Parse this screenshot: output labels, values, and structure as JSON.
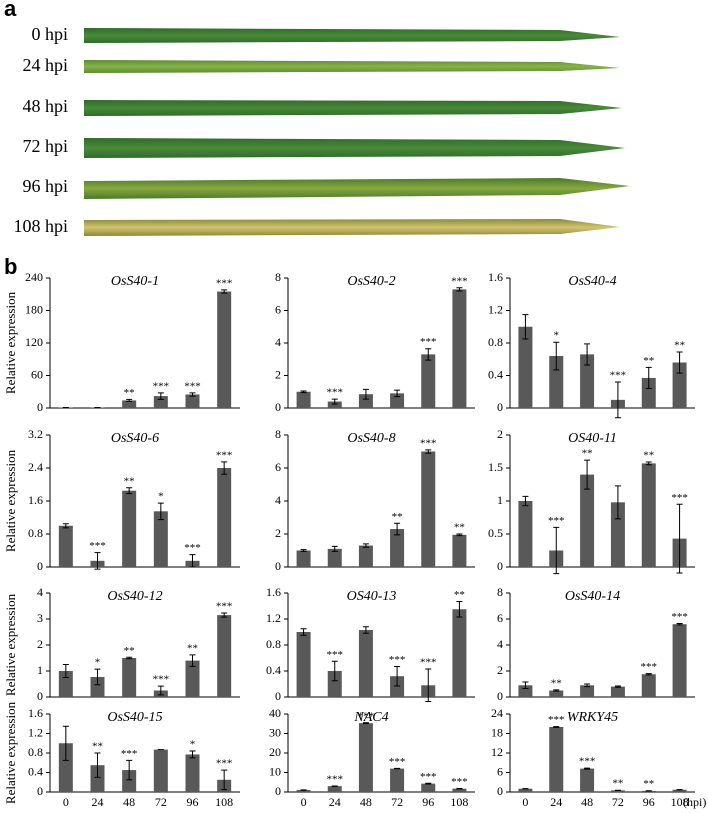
{
  "panel_a": {
    "label": "a",
    "rows": [
      "0 hpi",
      "24 hpi",
      "48 hpi",
      "72 hpi",
      "96 hpi",
      "108 hpi"
    ]
  },
  "panel_b": {
    "label": "b",
    "y_label": "Relative expression"
  },
  "chart_data": [
    {
      "type": "bar",
      "title": "OsS40-1",
      "values": [
        1,
        1,
        14,
        22,
        25,
        215
      ],
      "errors": [
        0,
        0,
        2,
        6,
        3,
        3
      ],
      "annotations": [
        null,
        null,
        "**",
        "***",
        "***",
        "***"
      ],
      "ylim": [
        0,
        240
      ],
      "yticks": [
        0,
        60,
        120,
        180,
        240
      ],
      "color": "#595959"
    },
    {
      "type": "bar",
      "title": "OsS40-2",
      "values": [
        1,
        0.4,
        0.85,
        0.9,
        3.3,
        7.3
      ],
      "errors": [
        0.05,
        0.15,
        0.3,
        0.2,
        0.35,
        0.1
      ],
      "annotations": [
        null,
        "***",
        null,
        null,
        "***",
        "***"
      ],
      "ylim": [
        0,
        8
      ],
      "yticks": [
        0,
        2,
        4,
        6,
        8
      ],
      "color": "#595959"
    },
    {
      "type": "bar",
      "title": "OsS40-4",
      "values": [
        1,
        0.64,
        0.66,
        0.1,
        0.37,
        0.56
      ],
      "errors": [
        0.15,
        0.17,
        0.13,
        0.22,
        0.13,
        0.13
      ],
      "annotations": [
        null,
        "*",
        null,
        "***",
        "**",
        "**"
      ],
      "ylim": [
        0,
        1.6
      ],
      "yticks": [
        0,
        0.4,
        0.8,
        1.2,
        1.6
      ],
      "color": "#595959"
    },
    {
      "type": "bar",
      "title": "OsS40-6",
      "values": [
        1,
        0.15,
        1.85,
        1.35,
        0.15,
        2.4
      ],
      "errors": [
        0.05,
        0.2,
        0.07,
        0.2,
        0.15,
        0.15
      ],
      "annotations": [
        null,
        "***",
        "**",
        "*",
        "***",
        "***"
      ],
      "ylim": [
        0,
        3.2
      ],
      "yticks": [
        0,
        0.8,
        1.6,
        2.4,
        3.2
      ],
      "color": "#595959"
    },
    {
      "type": "bar",
      "title": "OsS40-8",
      "values": [
        1,
        1.1,
        1.3,
        2.3,
        7,
        1.95
      ],
      "errors": [
        0.05,
        0.15,
        0.1,
        0.35,
        0.1,
        0.05
      ],
      "annotations": [
        null,
        null,
        null,
        "**",
        "***",
        "**"
      ],
      "ylim": [
        0,
        8
      ],
      "yticks": [
        0,
        2,
        4,
        6,
        8
      ],
      "color": "#595959"
    },
    {
      "type": "bar",
      "title": "OS40-11",
      "values": [
        1,
        0.25,
        1.4,
        0.98,
        1.57,
        0.43
      ],
      "errors": [
        0.07,
        0.35,
        0.22,
        0.25,
        0.02,
        0.52
      ],
      "annotations": [
        null,
        "***",
        "**",
        null,
        "**",
        "***"
      ],
      "ylim": [
        0,
        2
      ],
      "yticks": [
        0,
        0.5,
        1,
        1.5,
        2
      ],
      "color": "#595959"
    },
    {
      "type": "bar",
      "title": "OsS40-12",
      "values": [
        1,
        0.77,
        1.5,
        0.25,
        1.4,
        3.15
      ],
      "errors": [
        0.25,
        0.3,
        0.03,
        0.17,
        0.22,
        0.08
      ],
      "annotations": [
        null,
        "*",
        "**",
        "***",
        "**",
        "***"
      ],
      "ylim": [
        0,
        4
      ],
      "yticks": [
        0,
        1,
        2,
        3,
        4
      ],
      "color": "#595959"
    },
    {
      "type": "bar",
      "title": "OS40-13",
      "values": [
        1,
        0.4,
        1.03,
        0.32,
        0.18,
        1.35
      ],
      "errors": [
        0.05,
        0.15,
        0.05,
        0.15,
        0.25,
        0.12
      ],
      "annotations": [
        null,
        "***",
        null,
        "***",
        "***",
        "**"
      ],
      "ylim": [
        0,
        1.6
      ],
      "yticks": [
        0,
        0.4,
        0.8,
        1.2,
        1.6
      ],
      "color": "#595959"
    },
    {
      "type": "bar",
      "title": "OsS40-14",
      "values": [
        0.9,
        0.5,
        0.9,
        0.8,
        1.75,
        5.6
      ],
      "errors": [
        0.25,
        0.05,
        0.1,
        0.05,
        0.05,
        0.05
      ],
      "annotations": [
        null,
        "**",
        null,
        null,
        "***",
        "***"
      ],
      "ylim": [
        0,
        8
      ],
      "yticks": [
        0,
        2,
        4,
        6,
        8
      ],
      "color": "#595959"
    },
    {
      "type": "bar",
      "title": "OsS40-15",
      "categories": [
        "0",
        "24",
        "48",
        "72",
        "96",
        "108"
      ],
      "values": [
        1,
        0.55,
        0.45,
        0.87,
        0.77,
        0.25
      ],
      "errors": [
        0.35,
        0.25,
        0.2,
        0,
        0.07,
        0.2
      ],
      "annotations": [
        null,
        "**",
        "***",
        null,
        "*",
        "***"
      ],
      "ylim": [
        0,
        1.6
      ],
      "yticks": [
        0,
        0.4,
        0.8,
        1.2,
        1.6
      ],
      "color": "#595959"
    },
    {
      "type": "bar",
      "title": "NAC4",
      "categories": [
        "0",
        "24",
        "48",
        "72",
        "96",
        "108"
      ],
      "values": [
        1,
        3,
        35.3,
        12,
        4.3,
        1.7
      ],
      "errors": [
        0.1,
        0.1,
        0.2,
        0.1,
        0.2,
        0.1
      ],
      "annotations": [
        null,
        "***",
        "***",
        "***",
        "***",
        "***"
      ],
      "ylim": [
        0,
        40
      ],
      "yticks": [
        0,
        10,
        20,
        30,
        40
      ],
      "color": "#595959"
    },
    {
      "type": "bar",
      "title": "WRKY45",
      "categories": [
        "0",
        "24",
        "48",
        "72",
        "96",
        "108"
      ],
      "xlabel": "(hpi)",
      "values": [
        1,
        20,
        7.2,
        0.5,
        0.35,
        0.7
      ],
      "errors": [
        0.05,
        0.1,
        0.15,
        0.05,
        0.05,
        0.05
      ],
      "annotations": [
        null,
        "***",
        "***",
        "**",
        "**",
        null
      ],
      "ylim": [
        0,
        24
      ],
      "yticks": [
        0,
        6,
        12,
        18,
        24
      ],
      "color": "#595959"
    }
  ]
}
